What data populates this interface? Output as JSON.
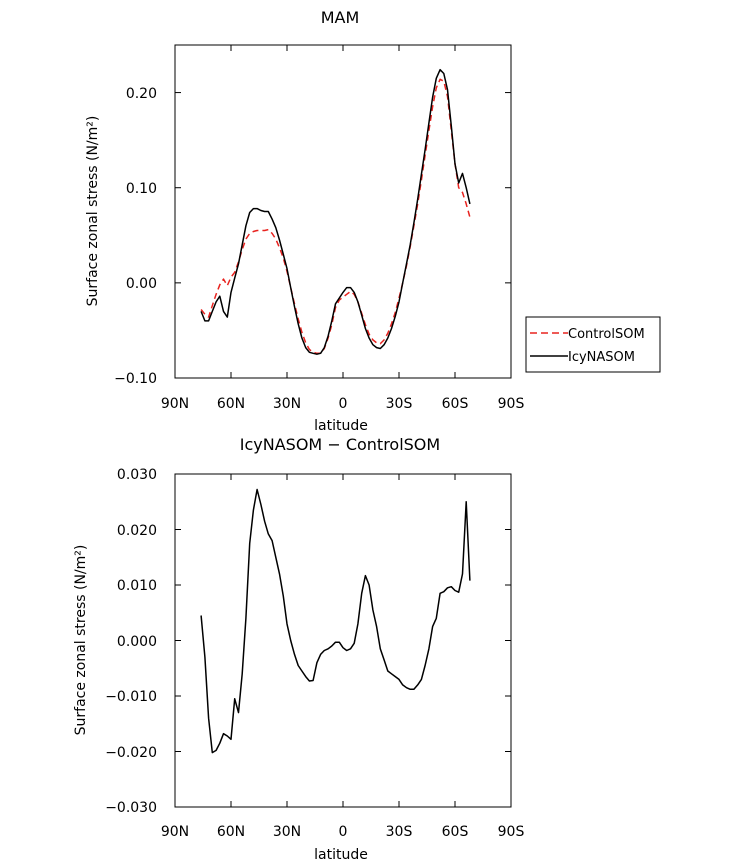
{
  "chart_data": [
    {
      "type": "line",
      "title": "MAM",
      "xlabel": "latitude",
      "ylabel": "Surface zonal stress (N/m²)",
      "xlim": [
        90,
        -90
      ],
      "ylim": [
        -0.1,
        0.25
      ],
      "x_ticks": [
        90,
        60,
        30,
        0,
        -30,
        -60,
        -90
      ],
      "x_tick_labels": [
        "90N",
        "60N",
        "30N",
        "0",
        "30S",
        "60S",
        "90S"
      ],
      "y_ticks": [
        -0.1,
        0.0,
        0.1,
        0.2
      ],
      "y_tick_labels": [
        "−0.10",
        "0.00",
        "0.10",
        "0.20"
      ],
      "grid": false,
      "legend_position": "right",
      "series": [
        {
          "name": "ControlSOM",
          "color": "#e8231f",
          "dash": "dashed",
          "x": [
            76,
            74,
            72,
            70,
            68,
            66,
            64,
            62,
            60,
            58,
            56,
            54,
            52,
            50,
            48,
            46,
            44,
            42,
            40,
            38,
            36,
            34,
            32,
            30,
            28,
            26,
            24,
            22,
            20,
            18,
            16,
            14,
            12,
            10,
            8,
            6,
            4,
            2,
            0,
            -2,
            -4,
            -6,
            -8,
            -10,
            -12,
            -14,
            -16,
            -18,
            -20,
            -22,
            -24,
            -26,
            -28,
            -30,
            -32,
            -34,
            -36,
            -38,
            -40,
            -42,
            -44,
            -46,
            -48,
            -50,
            -52,
            -54,
            -56,
            -58,
            -60,
            -62,
            -64,
            -66,
            -68
          ],
          "y": [
            -0.028,
            -0.033,
            -0.036,
            -0.024,
            -0.012,
            -0.002,
            0.004,
            -0.003,
            0.006,
            0.011,
            0.022,
            0.035,
            0.046,
            0.052,
            0.054,
            0.055,
            0.055,
            0.055,
            0.056,
            0.052,
            0.046,
            0.037,
            0.026,
            0.012,
            -0.005,
            -0.022,
            -0.038,
            -0.052,
            -0.063,
            -0.07,
            -0.073,
            -0.074,
            -0.074,
            -0.069,
            -0.058,
            -0.044,
            -0.026,
            -0.018,
            -0.015,
            -0.012,
            -0.009,
            -0.012,
            -0.02,
            -0.032,
            -0.044,
            -0.054,
            -0.06,
            -0.063,
            -0.064,
            -0.06,
            -0.053,
            -0.043,
            -0.031,
            -0.016,
            0.0,
            0.018,
            0.038,
            0.06,
            0.083,
            0.108,
            0.134,
            0.16,
            0.185,
            0.205,
            0.214,
            0.212,
            0.196,
            0.16,
            0.125,
            0.1,
            0.095,
            0.083,
            0.069
          ]
        },
        {
          "name": "IcyNASOM",
          "color": "#000000",
          "dash": "solid",
          "x": [
            76,
            74,
            72,
            70,
            68,
            66,
            64,
            62,
            60,
            58,
            56,
            54,
            52,
            50,
            48,
            46,
            44,
            42,
            40,
            38,
            36,
            34,
            32,
            30,
            28,
            26,
            24,
            22,
            20,
            18,
            16,
            14,
            12,
            10,
            8,
            6,
            4,
            2,
            0,
            -2,
            -4,
            -6,
            -8,
            -10,
            -12,
            -14,
            -16,
            -18,
            -20,
            -22,
            -24,
            -26,
            -28,
            -30,
            -32,
            -34,
            -36,
            -38,
            -40,
            -42,
            -44,
            -46,
            -48,
            -50,
            -52,
            -54,
            -56,
            -58,
            -60,
            -62,
            -64,
            -66,
            -68
          ],
          "y": [
            -0.03,
            -0.04,
            -0.04,
            -0.03,
            -0.02,
            -0.014,
            -0.03,
            -0.036,
            -0.01,
            0.005,
            0.02,
            0.04,
            0.06,
            0.074,
            0.078,
            0.078,
            0.076,
            0.075,
            0.075,
            0.067,
            0.058,
            0.045,
            0.03,
            0.015,
            -0.005,
            -0.025,
            -0.043,
            -0.058,
            -0.068,
            -0.073,
            -0.074,
            -0.075,
            -0.074,
            -0.068,
            -0.056,
            -0.04,
            -0.022,
            -0.016,
            -0.01,
            -0.005,
            -0.005,
            -0.01,
            -0.02,
            -0.034,
            -0.048,
            -0.058,
            -0.065,
            -0.068,
            -0.069,
            -0.065,
            -0.058,
            -0.048,
            -0.035,
            -0.02,
            0.0,
            0.02,
            0.04,
            0.063,
            0.088,
            0.114,
            0.14,
            0.168,
            0.195,
            0.215,
            0.224,
            0.22,
            0.203,
            0.165,
            0.125,
            0.105,
            0.115,
            0.1,
            0.083
          ]
        }
      ]
    },
    {
      "type": "line",
      "title": "IcyNASOM − ControlSOM",
      "xlabel": "latitude",
      "ylabel": "Surface zonal stress (N/m²)",
      "xlim": [
        90,
        -90
      ],
      "ylim": [
        -0.03,
        0.03
      ],
      "x_ticks": [
        90,
        60,
        30,
        0,
        -30,
        -60,
        -90
      ],
      "x_tick_labels": [
        "90N",
        "60N",
        "30N",
        "0",
        "30S",
        "60S",
        "90S"
      ],
      "y_ticks": [
        -0.03,
        -0.02,
        -0.01,
        0.0,
        0.01,
        0.02,
        0.03
      ],
      "y_tick_labels": [
        "−0.030",
        "−0.020",
        "−0.010",
        "0.000",
        "0.010",
        "0.020",
        "0.030"
      ],
      "grid": false,
      "series": [
        {
          "color": "#000000",
          "dash": "solid",
          "x": [
            76,
            74,
            72,
            70,
            68,
            66,
            64,
            62,
            60,
            58,
            56,
            54,
            52,
            50,
            48,
            46,
            44,
            42,
            40,
            38,
            36,
            34,
            32,
            30,
            28,
            26,
            24,
            22,
            20,
            18,
            16,
            14,
            12,
            10,
            8,
            6,
            4,
            2,
            0,
            -2,
            -4,
            -6,
            -8,
            -10,
            -12,
            -14,
            -16,
            -18,
            -20,
            -22,
            -24,
            -26,
            -28,
            -30,
            -32,
            -34,
            -36,
            -38,
            -40,
            -42,
            -44,
            -46,
            -48,
            -50,
            -52,
            -54,
            -56,
            -58,
            -60,
            -62,
            -64,
            -66,
            -68
          ],
          "y": [
            0.0045,
            -0.003,
            -0.014,
            -0.0202,
            -0.0198,
            -0.0185,
            -0.0168,
            -0.0172,
            -0.0178,
            -0.0105,
            -0.013,
            -0.006,
            0.004,
            0.0175,
            0.0235,
            0.0272,
            0.0245,
            0.0215,
            0.0192,
            0.018,
            0.015,
            0.012,
            0.008,
            0.003,
            0.0,
            -0.0025,
            -0.0045,
            -0.0055,
            -0.0065,
            -0.0073,
            -0.0072,
            -0.004,
            -0.0025,
            -0.0018,
            -0.0015,
            -0.001,
            -0.0003,
            -0.0003,
            -0.0013,
            -0.0018,
            -0.0015,
            -0.0005,
            0.003,
            0.0085,
            0.0117,
            0.01,
            0.0055,
            0.0025,
            -0.0015,
            -0.0035,
            -0.0055,
            -0.006,
            -0.0065,
            -0.007,
            -0.008,
            -0.0085,
            -0.0088,
            -0.0088,
            -0.008,
            -0.007,
            -0.0045,
            -0.0015,
            0.0025,
            0.004,
            0.0085,
            0.0088,
            0.0095,
            0.0097,
            0.009,
            0.0087,
            0.012,
            0.025,
            0.0108
          ]
        }
      ]
    }
  ]
}
